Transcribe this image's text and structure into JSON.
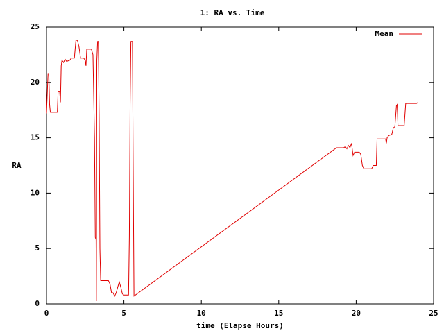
{
  "chart_data": {
    "type": "line",
    "title": "1: RA vs. Time",
    "x_label": "time (Elapse Hours)",
    "y_label": "RA",
    "xlim": [
      0,
      25
    ],
    "ylim": [
      0,
      25
    ],
    "xticks": [
      0,
      5,
      10,
      15,
      20,
      25
    ],
    "yticks": [
      0,
      5,
      10,
      15,
      20,
      25
    ],
    "grid": false,
    "legend": "upper right",
    "x": [
      0,
      0.05,
      0.1,
      0.15,
      0.2,
      0.25,
      0.7,
      0.75,
      0.85,
      0.9,
      0.95,
      1.0,
      1.1,
      1.2,
      1.3,
      1.5,
      1.6,
      1.8,
      1.9,
      2.0,
      2.1,
      2.2,
      2.4,
      2.5,
      2.55,
      2.6,
      2.9,
      3.0,
      3.1,
      3.15,
      3.2,
      3.22,
      3.25,
      3.3,
      3.35,
      3.4,
      3.45,
      3.5,
      4.0,
      4.1,
      4.2,
      4.3,
      4.4,
      4.5,
      4.6,
      4.7,
      4.8,
      4.9,
      5.0,
      5.3,
      5.35,
      5.4,
      5.45,
      5.55,
      5.6,
      5.65,
      18.73,
      19.2,
      19.3,
      19.4,
      19.5,
      19.6,
      19.7,
      19.8,
      19.9,
      20.2,
      20.3,
      20.4,
      20.5,
      21.0,
      21.1,
      21.3,
      21.35,
      21.9,
      21.95,
      22.0,
      22.1,
      22.3,
      22.4,
      22.5,
      22.6,
      22.65,
      22.7,
      23.1,
      23.2,
      23.9,
      24.0
    ],
    "series": [
      {
        "name": "Mean",
        "color": "#e00000",
        "values": [
          17.2,
          19,
          20.8,
          20.8,
          18,
          17.3,
          17.3,
          19.2,
          19.2,
          18.2,
          21.5,
          22,
          21.8,
          22.1,
          21.9,
          22,
          22.2,
          22.2,
          23.8,
          23.8,
          23.2,
          22.2,
          22.2,
          22,
          21.5,
          23,
          23,
          22.5,
          15,
          6,
          5.8,
          0.25,
          22,
          23.7,
          23.7,
          17,
          5,
          2.1,
          2.1,
          1.8,
          1,
          1,
          0.7,
          1,
          1.5,
          2,
          1.5,
          0.9,
          0.8,
          0.8,
          6,
          18,
          23.7,
          23.7,
          12,
          0.7,
          14.1,
          14.1,
          14.2,
          14,
          14.3,
          14.1,
          14.5,
          13.4,
          13.7,
          13.7,
          13.5,
          12.5,
          12.2,
          12.2,
          12.5,
          12.5,
          14.9,
          14.9,
          14.5,
          15,
          15.2,
          15.3,
          15.9,
          16,
          17.9,
          18,
          16.1,
          16.1,
          18.1,
          18.1,
          18.2
        ]
      }
    ]
  }
}
